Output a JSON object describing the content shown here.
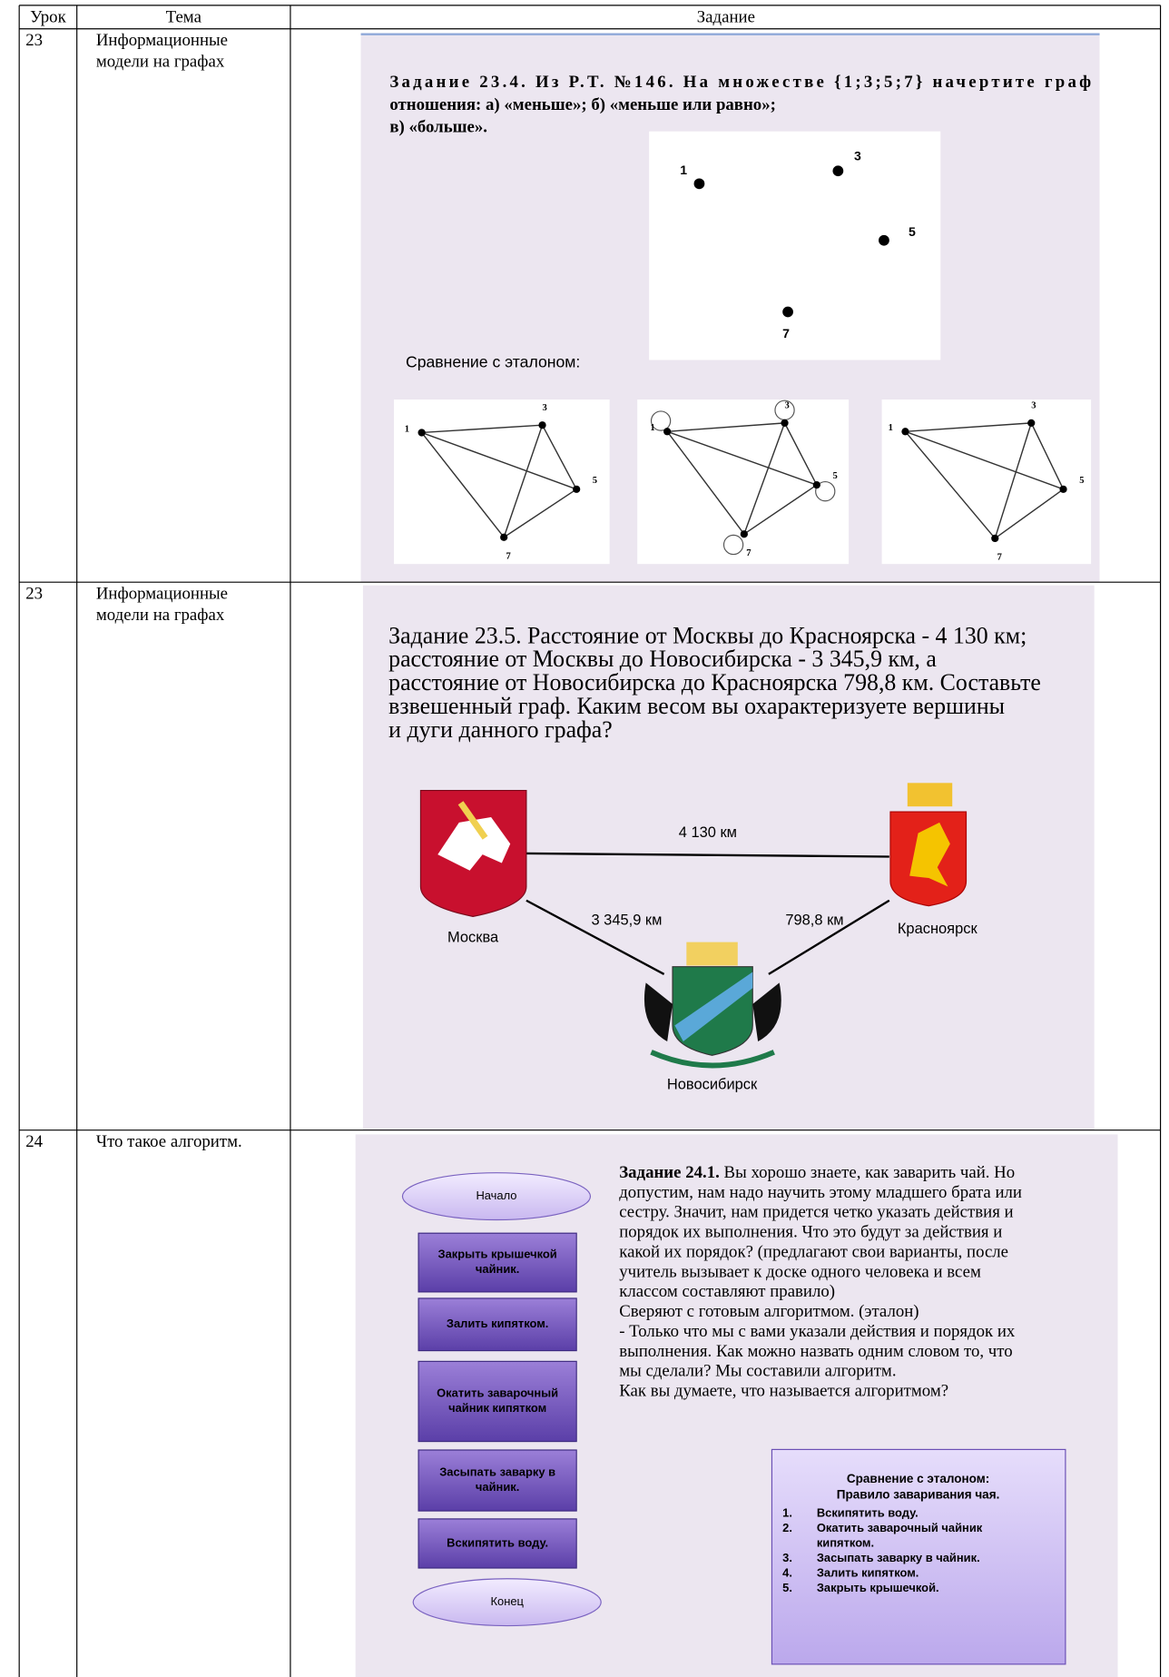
{
  "table": {
    "header": [
      "Урок",
      "Тема",
      "Задание"
    ],
    "rows": [
      {
        "lesson": "23",
        "topic": [
          "Информационные",
          "модели на графах"
        ],
        "task": {
          "title": [
            "Задание 23.4. Из Р.Т. №146. На множестве {1;3;5;7} начертите граф",
            "отношения: а) «меньше»; б) «меньше или равно»;",
            "в) «больше»."
          ],
          "vertices": [
            "1",
            "3",
            "5",
            "7"
          ],
          "comparison": "Сравнение с эталоном:"
        }
      },
      {
        "lesson": "23",
        "topic": [
          "Информационные",
          "модели на графах"
        ],
        "task": {
          "text": [
            "Задание 23.5. Расстояние от Москвы до Красноярска -  4 130 км;",
            "расстояние от Москвы до Новосибирска -  3 345,9 км, а",
            "расстояние от Новосибирска до Красноярска 798,8 км. Составьте",
            "взвешенный граф. Каким весом вы охарактеризуете вершины",
            "и дуги данного графа?"
          ],
          "edges": [
            "4 130 км",
            "3 345,9 км",
            "798,8 км"
          ],
          "cities": [
            "Москва",
            "Красноярск",
            "Новосибирск"
          ]
        }
      },
      {
        "lesson": "24",
        "topic": [
          "Что такое алгоритм."
        ],
        "task": {
          "flowchart": [
            [
              "Начало"
            ],
            [
              "Закрыть крышечкой",
              "чайник."
            ],
            [
              "Залить кипятком."
            ],
            [
              "Окатить заварочный",
              "чайник кипятком"
            ],
            [
              "Засыпать заварку в",
              "чайник."
            ],
            [
              "Вскипятить воду."
            ],
            [
              "Конец"
            ]
          ],
          "label": "Задание 24.1.",
          "text": [
            "Вы хорошо знаете, как заварить чай. Но",
            "допустим, нам надо научить этому младшего брата или",
            "сестру. Значит, нам придется четко указать действия и",
            "порядок их выполнения. Что это будут за действия и",
            "какой их порядок?   (предлагают свои варианты, после",
            "учитель вызывает к доске одного человека и всем",
            "классом составляют правило)",
            "Сверяют с готовым алгоритмом. (эталон)",
            "- Только что мы с вами указали действия и порядок их",
            "выполнения. Как можно назвать одним словом то, что",
            "мы сделали? Мы составили алгоритм.",
            "Как вы думаете, что называется алгоритмом?"
          ],
          "reference": {
            "title": [
              "Сравнение с эталоном:",
              "Правило заваривания чая."
            ],
            "steps": [
              {
                "num": "1.",
                "text": [
                  "Вскипятить воду."
                ]
              },
              {
                "num": "2.",
                "text": [
                  "Окатить заварочный чайник",
                  "кипятком."
                ]
              },
              {
                "num": "3.",
                "text": [
                  "Засыпать заварку в чайник."
                ]
              },
              {
                "num": "4.",
                "text": [
                  "Залить кипятком."
                ]
              },
              {
                "num": "5.",
                "text": [
                  "Закрыть крышечкой."
                ]
              }
            ]
          }
        }
      }
    ]
  }
}
